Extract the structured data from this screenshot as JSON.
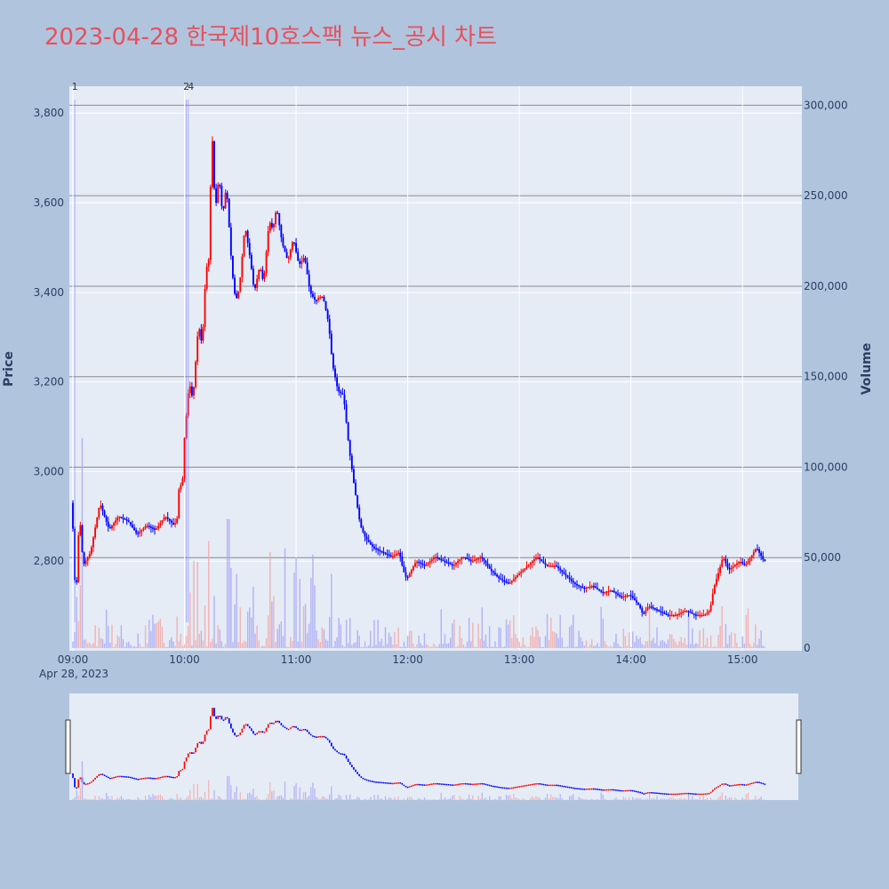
{
  "title": "2023-04-28 한국제10호스팩 뉴스_공시 차트",
  "chart_data": {
    "type": "candlestick",
    "title": "2023-04-28 한국제10호스팩 뉴스_공시 차트",
    "date_label": "Apr 28, 2023",
    "y_left_label": "Price",
    "y_right_label": "Volume",
    "y_left_range": [
      2600,
      3860
    ],
    "y_right_range": [
      0,
      312000
    ],
    "y_left_ticks": [
      "2,800",
      "3,000",
      "3,200",
      "3,400",
      "3,600",
      "3,800"
    ],
    "y_right_ticks": [
      "0",
      "50,000",
      "100,000",
      "150,000",
      "200,000",
      "250,000",
      "300,000"
    ],
    "x_ticks": [
      "09:00",
      "10:00",
      "11:00",
      "12:00",
      "13:00",
      "14:00",
      "15:00"
    ],
    "up_color": "#ff0000",
    "down_color": "#0000ff",
    "news_markers": [
      {
        "time": "09:01",
        "label": "1"
      },
      {
        "time": "10:01",
        "label": "2"
      },
      {
        "time": "10:02",
        "label": "4"
      }
    ],
    "price_path": [
      [
        "09:00",
        2930
      ],
      [
        "09:02",
        2700
      ],
      [
        "09:04",
        2910
      ],
      [
        "09:06",
        2790
      ],
      [
        "09:10",
        2820
      ],
      [
        "09:15",
        2930
      ],
      [
        "09:20",
        2870
      ],
      [
        "09:25",
        2900
      ],
      [
        "09:30",
        2890
      ],
      [
        "09:35",
        2860
      ],
      [
        "09:40",
        2880
      ],
      [
        "09:45",
        2870
      ],
      [
        "09:50",
        2900
      ],
      [
        "09:55",
        2880
      ],
      [
        "09:57",
        2900
      ],
      [
        "09:58",
        3020
      ],
      [
        "09:59",
        2920
      ],
      [
        "10:00",
        3050
      ],
      [
        "10:03",
        3200
      ],
      [
        "10:05",
        3160
      ],
      [
        "10:08",
        3330
      ],
      [
        "10:10",
        3280
      ],
      [
        "10:12",
        3450
      ],
      [
        "10:14",
        3480
      ],
      [
        "10:15",
        3790
      ],
      [
        "10:17",
        3580
      ],
      [
        "10:19",
        3660
      ],
      [
        "10:21",
        3570
      ],
      [
        "10:23",
        3640
      ],
      [
        "10:26",
        3450
      ],
      [
        "10:28",
        3380
      ],
      [
        "10:30",
        3410
      ],
      [
        "10:33",
        3550
      ],
      [
        "10:36",
        3470
      ],
      [
        "10:38",
        3400
      ],
      [
        "10:41",
        3460
      ],
      [
        "10:43",
        3420
      ],
      [
        "10:46",
        3560
      ],
      [
        "10:48",
        3540
      ],
      [
        "10:50",
        3590
      ],
      [
        "10:53",
        3510
      ],
      [
        "10:56",
        3470
      ],
      [
        "10:59",
        3520
      ],
      [
        "11:02",
        3460
      ],
      [
        "11:05",
        3480
      ],
      [
        "11:08",
        3400
      ],
      [
        "11:11",
        3380
      ],
      [
        "11:13",
        3390
      ],
      [
        "11:15",
        3390
      ],
      [
        "11:18",
        3330
      ],
      [
        "11:20",
        3240
      ],
      [
        "11:23",
        3180
      ],
      [
        "11:26",
        3170
      ],
      [
        "11:29",
        3050
      ],
      [
        "11:32",
        2960
      ],
      [
        "11:35",
        2880
      ],
      [
        "11:38",
        2850
      ],
      [
        "11:42",
        2830
      ],
      [
        "11:47",
        2820
      ],
      [
        "11:52",
        2810
      ],
      [
        "11:56",
        2820
      ],
      [
        "11:58",
        2780
      ],
      [
        "12:00",
        2760
      ],
      [
        "12:05",
        2800
      ],
      [
        "12:10",
        2790
      ],
      [
        "12:15",
        2810
      ],
      [
        "12:20",
        2800
      ],
      [
        "12:25",
        2790
      ],
      [
        "12:30",
        2810
      ],
      [
        "12:35",
        2800
      ],
      [
        "12:40",
        2810
      ],
      [
        "12:45",
        2780
      ],
      [
        "12:50",
        2760
      ],
      [
        "12:55",
        2750
      ],
      [
        "13:00",
        2770
      ],
      [
        "13:05",
        2790
      ],
      [
        "13:10",
        2810
      ],
      [
        "13:15",
        2790
      ],
      [
        "13:20",
        2790
      ],
      [
        "13:25",
        2770
      ],
      [
        "13:30",
        2750
      ],
      [
        "13:35",
        2740
      ],
      [
        "13:40",
        2745
      ],
      [
        "13:45",
        2730
      ],
      [
        "13:50",
        2735
      ],
      [
        "13:55",
        2720
      ],
      [
        "14:00",
        2725
      ],
      [
        "14:05",
        2700
      ],
      [
        "14:07",
        2680
      ],
      [
        "14:10",
        2700
      ],
      [
        "14:15",
        2690
      ],
      [
        "14:20",
        2680
      ],
      [
        "14:25",
        2680
      ],
      [
        "14:30",
        2690
      ],
      [
        "14:35",
        2680
      ],
      [
        "14:40",
        2680
      ],
      [
        "14:43",
        2690
      ],
      [
        "14:45",
        2740
      ],
      [
        "14:48",
        2780
      ],
      [
        "14:50",
        2810
      ],
      [
        "14:53",
        2780
      ],
      [
        "14:56",
        2790
      ],
      [
        "14:59",
        2800
      ],
      [
        "15:02",
        2790
      ],
      [
        "15:05",
        2810
      ],
      [
        "15:08",
        2830
      ],
      [
        "15:12",
        2800
      ]
    ]
  }
}
